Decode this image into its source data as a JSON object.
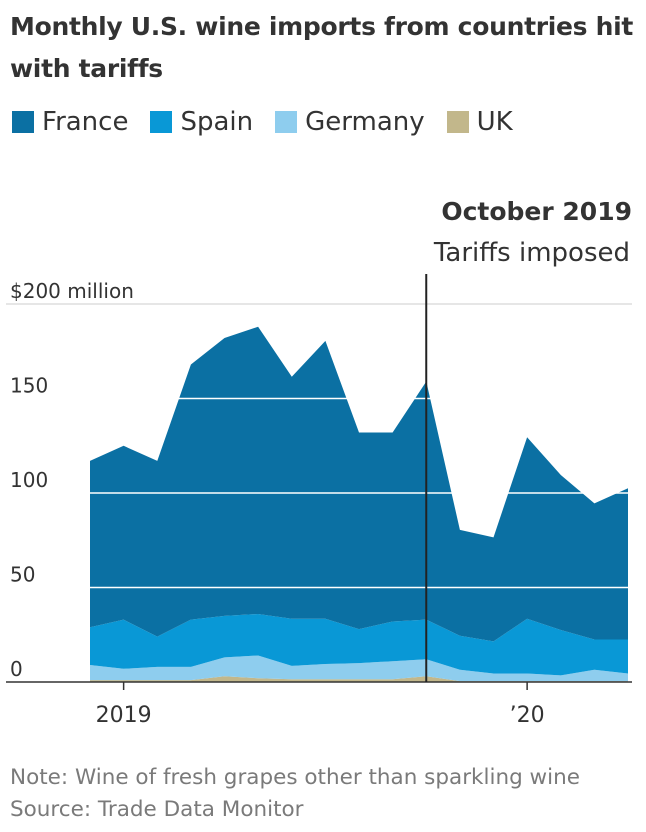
{
  "chart_data": {
    "type": "area",
    "stacked": true,
    "title": "Monthly U.S. wine imports from countries hit with tariffs",
    "unit": "$ million",
    "x": [
      "2018-12",
      "2019-01",
      "2019-02",
      "2019-03",
      "2019-04",
      "2019-05",
      "2019-06",
      "2019-07",
      "2019-08",
      "2019-09",
      "2019-10",
      "2019-11",
      "2019-12",
      "2020-01",
      "2020-02",
      "2020-03",
      "2020-04"
    ],
    "series": [
      {
        "name": "UK",
        "color": "#c2b78b",
        "values": [
          1,
          1,
          1,
          1,
          3,
          2,
          1.5,
          1.5,
          1.5,
          1.5,
          3,
          0.5,
          0.5,
          0.5,
          0.5,
          0.5,
          0.5
        ]
      },
      {
        "name": "Germany",
        "color": "#8ecdee",
        "values": [
          8,
          6,
          7,
          7,
          10,
          12,
          7,
          8,
          8.5,
          9.5,
          9,
          6,
          4,
          4,
          3,
          6,
          4
        ]
      },
      {
        "name": "Spain",
        "color": "#0998d6",
        "values": [
          20,
          26,
          16,
          25,
          22,
          22,
          25,
          24,
          18,
          21,
          21,
          18,
          17,
          29,
          24,
          16,
          18
        ]
      },
      {
        "name": "France",
        "color": "#0b70a3",
        "values": [
          88,
          92,
          93,
          135,
          147,
          152,
          128,
          147,
          104,
          100,
          126,
          56,
          55,
          96,
          82,
          72,
          80
        ]
      }
    ],
    "totals": [
      117,
      125,
      117,
      168,
      182,
      188,
      162,
      180,
      132,
      132,
      159,
      81,
      77,
      130,
      110,
      95,
      103
    ],
    "ylim": [
      0,
      200
    ],
    "yticks": [
      0,
      50,
      100,
      150,
      200
    ],
    "ytick_labels": [
      "0",
      "50",
      "100",
      "150",
      "$200 million"
    ],
    "xticks": [
      {
        "at": "2019-01",
        "label": "2019"
      },
      {
        "at": "2020-01",
        "label": "’20"
      }
    ],
    "annotation": {
      "at": "2019-10",
      "title": "October 2019",
      "subtitle": "Tariffs imposed"
    },
    "legend": [
      "France",
      "Spain",
      "Germany",
      "UK"
    ],
    "legend_position": "top-left"
  },
  "header": {
    "title": "Monthly U.S. wine imports from countries hit with tariffs"
  },
  "legend": {
    "items": [
      {
        "label": "France",
        "color": "#0b70a3"
      },
      {
        "label": "Spain",
        "color": "#0998d6"
      },
      {
        "label": "Germany",
        "color": "#8ecdee"
      },
      {
        "label": "UK",
        "color": "#c2b78b"
      }
    ]
  },
  "footer": {
    "note": "Note: Wine of fresh grapes other than sparkling wine",
    "source": "Source: Trade Data Monitor"
  }
}
